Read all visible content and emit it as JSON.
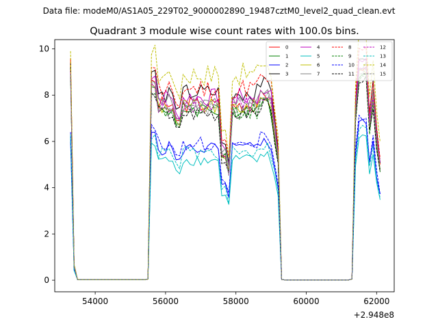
{
  "figure": {
    "suptitle": "Data file: modeM0/AS1A05_229T02_9000002890_19487cztM0_level2_quad_clean.evt"
  },
  "chart_data": {
    "type": "line",
    "title": "Quadrant 3 module wise count rates with 100.0s bins.",
    "xlabel": "",
    "ylabel": "",
    "x_offset_text": "+2.948e8",
    "xlim": [
      52850,
      62500
    ],
    "ylim": [
      -0.5,
      10.4
    ],
    "xticks": [
      54000,
      56000,
      58000,
      60000,
      62000
    ],
    "xtick_labels": [
      "54000",
      "56000",
      "58000",
      "60000",
      "62000"
    ],
    "yticks": [
      0,
      2,
      4,
      6,
      8,
      10
    ],
    "ytick_labels": [
      "0",
      "2",
      "4",
      "6",
      "8",
      "10"
    ],
    "grid": false,
    "legend_position": "top-right",
    "legend_columns": 4,
    "series": [
      {
        "name": "0",
        "color": "#ff0000",
        "style": "solid",
        "base": 7.6,
        "amp": 0.35,
        "peak": 9.55
      },
      {
        "name": "1",
        "color": "#008000",
        "style": "solid",
        "base": 7.4,
        "amp": 0.35,
        "peak": 8.9
      },
      {
        "name": "2",
        "color": "#0000ff",
        "style": "solid",
        "base": 5.7,
        "amp": 0.3,
        "peak": 6.0
      },
      {
        "name": "3",
        "color": "#000000",
        "style": "solid",
        "base": 8.1,
        "amp": 0.4,
        "peak": 9.4
      },
      {
        "name": "4",
        "color": "#bf00bf",
        "style": "solid",
        "base": 7.9,
        "amp": 0.4,
        "peak": 9.1
      },
      {
        "name": "5",
        "color": "#00bfbf",
        "style": "solid",
        "base": 5.2,
        "amp": 0.25,
        "peak": 6.2
      },
      {
        "name": "6",
        "color": "#bfbf00",
        "style": "solid",
        "base": 7.5,
        "amp": 0.35,
        "peak": 9.3
      },
      {
        "name": "7",
        "color": "#808080",
        "style": "solid",
        "base": 7.7,
        "amp": 0.35,
        "peak": 8.9
      },
      {
        "name": "8",
        "color": "#ff0000",
        "style": "dashed",
        "base": 8.3,
        "amp": 0.45,
        "peak": 9.6
      },
      {
        "name": "9",
        "color": "#008000",
        "style": "dashed",
        "base": 7.3,
        "amp": 0.35,
        "peak": 8.8
      },
      {
        "name": "10",
        "color": "#0000ff",
        "style": "dashed",
        "base": 5.9,
        "amp": 0.3,
        "peak": 6.4
      },
      {
        "name": "11",
        "color": "#000000",
        "style": "dashed",
        "base": 7.2,
        "amp": 0.35,
        "peak": 9.2
      },
      {
        "name": "12",
        "color": "#bf00bf",
        "style": "dashed",
        "base": 7.6,
        "amp": 0.35,
        "peak": 9.0
      },
      {
        "name": "13",
        "color": "#00bfbf",
        "style": "dashed",
        "base": 5.5,
        "amp": 0.3,
        "peak": 6.3
      },
      {
        "name": "14",
        "color": "#bfbf00",
        "style": "dashed",
        "base": 8.9,
        "amp": 0.5,
        "peak": 9.9
      },
      {
        "name": "15",
        "color": "#808080",
        "style": "dashed",
        "base": 7.5,
        "amp": 0.35,
        "peak": 8.9
      }
    ]
  }
}
